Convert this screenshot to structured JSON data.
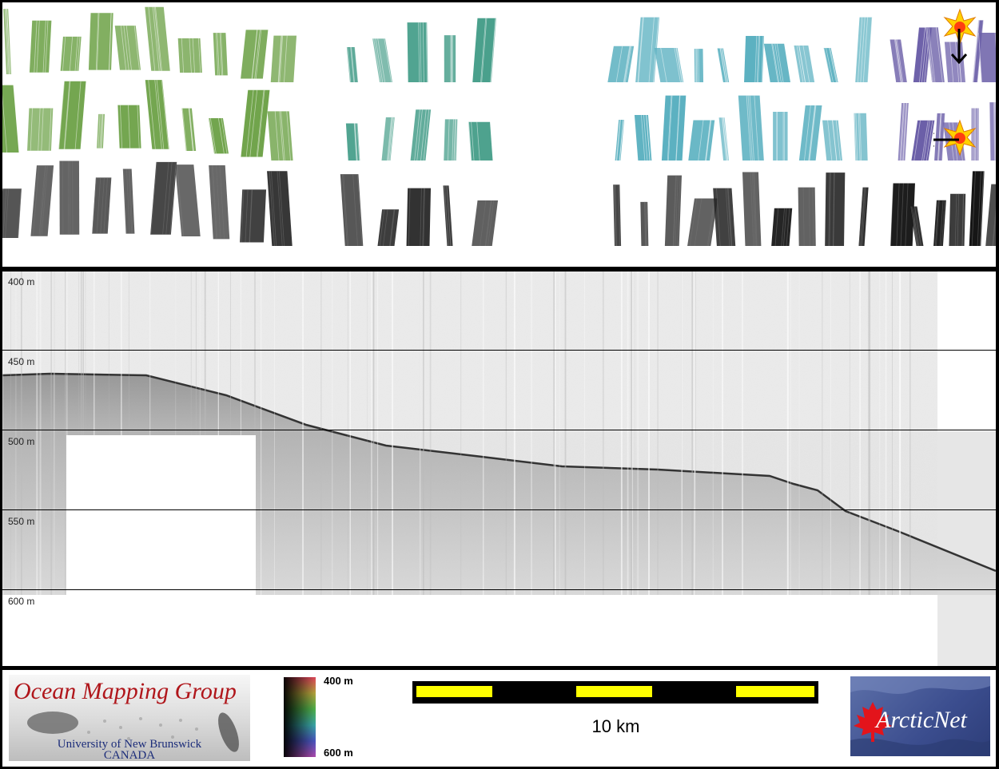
{
  "profile": {
    "depth_labels": [
      "400 m",
      "450 m",
      "500 m",
      "550 m",
      "600 m"
    ]
  },
  "footer": {
    "logo_left": {
      "title": "Ocean Mapping Group",
      "line1": "University of New Brunswick",
      "line2": "CANADA"
    },
    "colorbar": {
      "top_label": "400 m",
      "bottom_label": "600 m"
    },
    "scale_bar": {
      "label": "10 km"
    },
    "logo_right": {
      "text": "ArcticNet"
    }
  },
  "colors": {
    "scale_yellow": "#ffff00",
    "scale_black": "#000000",
    "green_shade": "#6fa34a",
    "teal_shade": "#4aa08c",
    "cyan_shade": "#5ab0c0",
    "purple_shade": "#6b5fa8",
    "omg_red": "#b0161b",
    "omg_blue": "#1c2d7a",
    "arctic_blue": "#3b4d8e"
  },
  "icons": [
    "sun-icon",
    "arrow-down-icon",
    "arrow-left-icon",
    "maple-leaf-icon"
  ]
}
